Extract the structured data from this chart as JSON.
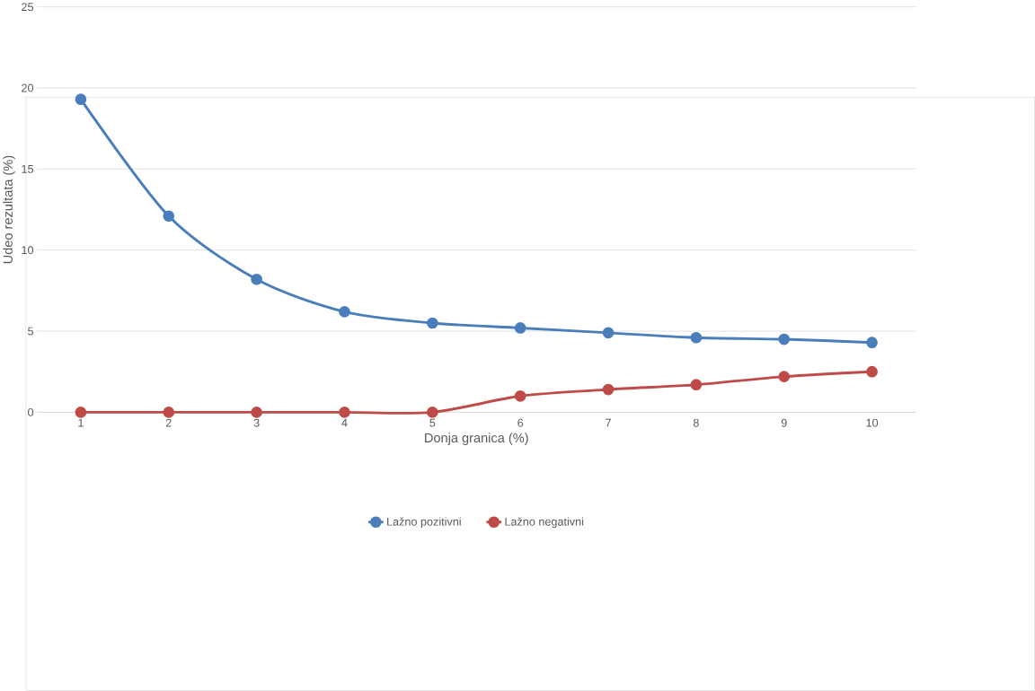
{
  "chart_data": {
    "type": "line",
    "xlabel": "Donja granica (%)",
    "ylabel": "Udeo rezultata (%)",
    "categories": [
      "1",
      "2",
      "3",
      "4",
      "5",
      "6",
      "7",
      "8",
      "9",
      "10"
    ],
    "series": [
      {
        "name": "Lažno pozitivni",
        "color": "#4a7ebb",
        "values": [
          19.3,
          12.1,
          8.2,
          6.2,
          5.5,
          5.2,
          4.9,
          4.6,
          4.5,
          4.3
        ]
      },
      {
        "name": "Lažno negativni",
        "color": "#be4b48",
        "values": [
          0,
          0,
          0,
          0,
          0,
          1.0,
          1.4,
          1.7,
          2.2,
          2.5
        ]
      }
    ],
    "ylim": [
      0,
      25
    ],
    "yticks": [
      0,
      5,
      10,
      15,
      20,
      25
    ],
    "grid": "y",
    "legend": "bottom",
    "marker": "circle",
    "line_style": "solid"
  }
}
